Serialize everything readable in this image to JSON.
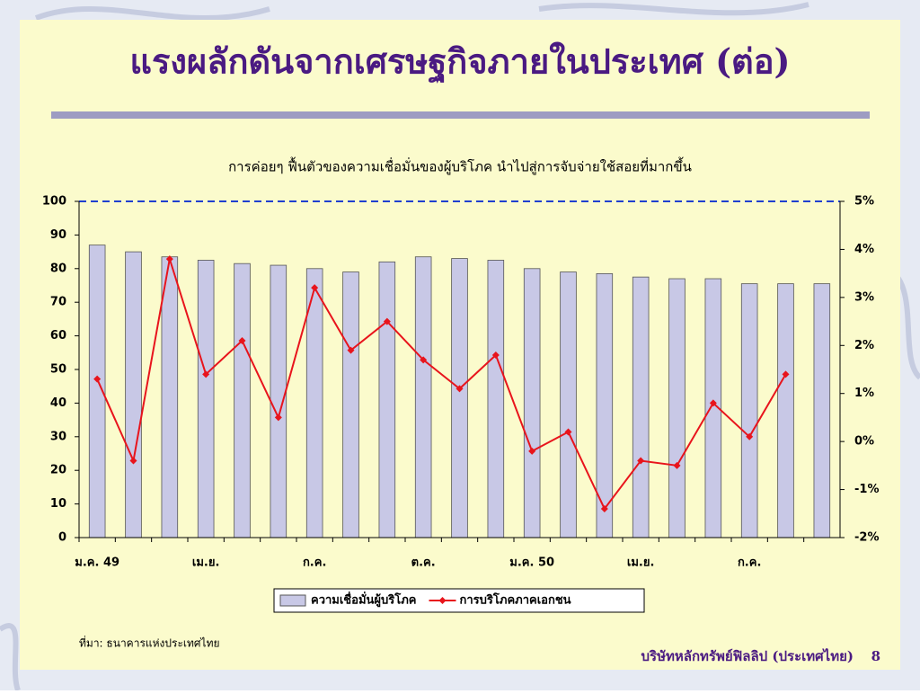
{
  "slide": {
    "title": "แรงผลักดันจากเศรษฐกิจภายในประเทศ (ต่อ)",
    "source": "ที่มา: ธนาคารแห่งประเทศไทย",
    "footer": "บริษัทหลักทรัพย์ฟิลลิป (ประเทศไทย)",
    "page": 8
  },
  "chart_data": {
    "type": "bar_line",
    "title": "การค่อยๆ ฟื้นตัวของความเชื่อมั่นของผู้บริโภค นำไปสู่การจับจ่ายใช้สอยที่มากขึ้น",
    "categories": [
      "ม.ค. 49",
      null,
      null,
      "เม.ย.",
      null,
      null,
      "ก.ค.",
      null,
      null,
      "ต.ค.",
      null,
      null,
      "ม.ค. 50",
      null,
      null,
      "เม.ย.",
      null,
      null,
      "ก.ค.",
      null,
      null
    ],
    "series": [
      {
        "name": "ความเชื่อมั่นผู้บริโภค",
        "color": "#c8c8e6",
        "kind": "bar",
        "values": [
          87,
          85,
          83.5,
          82.5,
          81.5,
          81,
          80,
          79,
          82,
          83.5,
          83,
          82.5,
          80,
          79,
          78.5,
          77.5,
          77,
          77,
          75.5,
          75.5,
          75.5
        ]
      },
      {
        "name": "การบริโภคภาคเอกชน",
        "color": "#e8141c",
        "kind": "line",
        "axis": "y2",
        "values": [
          1.3,
          -0.4,
          3.8,
          1.4,
          2.1,
          0.5,
          3.2,
          1.9,
          2.5,
          1.7,
          1.1,
          1.8,
          -0.2,
          0.2,
          -1.4,
          -0.4,
          -0.5,
          0.8,
          0.1,
          1.4,
          null
        ]
      }
    ],
    "ylim": [
      0,
      100
    ],
    "yticks": [
      0,
      10,
      20,
      30,
      40,
      50,
      60,
      70,
      80,
      90,
      100
    ],
    "y2lim": [
      -2,
      5
    ],
    "y2ticks": [
      {
        "value": -2,
        "label": "-2%"
      },
      {
        "value": -1,
        "label": "-1%"
      },
      {
        "value": 0,
        "label": "0%"
      },
      {
        "value": 1,
        "label": "1%"
      },
      {
        "value": 2,
        "label": "2%"
      },
      {
        "value": 3,
        "label": "3%"
      },
      {
        "value": 4,
        "label": "4%"
      },
      {
        "value": 5,
        "label": "5%"
      }
    ],
    "legend": "bottom"
  }
}
